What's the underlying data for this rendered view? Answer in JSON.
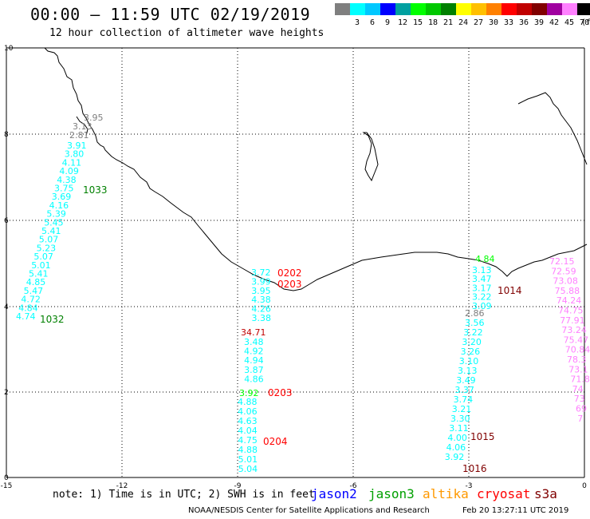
{
  "header": {
    "title": "00:00 – 11:59 UTC 02/19/2019",
    "subtitle": "12 hour collection of altimeter wave heights"
  },
  "legend": {
    "unit": "(ft)",
    "bins": [
      {
        "label": "",
        "color": "#7f7f7f"
      },
      {
        "label": "3",
        "color": "#00ffff"
      },
      {
        "label": "6",
        "color": "#00c8ff"
      },
      {
        "label": "9",
        "color": "#0000ff"
      },
      {
        "label": "12",
        "color": "#00a0a0"
      },
      {
        "label": "15",
        "color": "#00ff00"
      },
      {
        "label": "18",
        "color": "#00c800"
      },
      {
        "label": "21",
        "color": "#008000"
      },
      {
        "label": "24",
        "color": "#ffff00"
      },
      {
        "label": "27",
        "color": "#ffc000"
      },
      {
        "label": "30",
        "color": "#ff8000"
      },
      {
        "label": "33",
        "color": "#ff0000"
      },
      {
        "label": "36",
        "color": "#c00000"
      },
      {
        "label": "39",
        "color": "#800000"
      },
      {
        "label": "42",
        "color": "#a000a0"
      },
      {
        "label": "45",
        "color": "#ff80ff"
      },
      {
        "label": "70",
        "color": "#000000"
      }
    ]
  },
  "axes": {
    "x_ticks": [
      "-15",
      "-12",
      "-9",
      "-6",
      "-3",
      "0"
    ],
    "y_ticks": [
      "0",
      "2",
      "4",
      "6",
      "8",
      "10"
    ]
  },
  "tracks": [
    {
      "color": "#00ffff",
      "values": [
        "3.91",
        "3.80",
        "4.11",
        "4.09",
        "4.38",
        "3.75",
        "3.69",
        "4.16",
        "5.39",
        "5.45",
        "5.41",
        "5.07",
        "5.23",
        "5.07",
        "5.01",
        "5.41",
        "4.85",
        "5.47",
        "4.72",
        "4.84",
        "4.74"
      ]
    },
    {
      "color": "#00ffff",
      "values": [
        "3.72",
        "3.99",
        "3.95",
        "4.38",
        "4.26",
        "3.38"
      ]
    },
    {
      "color": "#00ffff",
      "values": [
        "3.48",
        "4.92",
        "4.94",
        "3.87",
        "4.86"
      ]
    },
    {
      "color": "#00ffff",
      "values": [
        "4.88",
        "4.06",
        "4.63",
        "4.04",
        "4.75",
        "4.88",
        "5.01",
        "5.04"
      ]
    },
    {
      "color": "#00ffff",
      "values": [
        "3.13",
        "3.47",
        "3.17",
        "3.22",
        "3.09"
      ]
    },
    {
      "color": "#00ffff",
      "values": [
        "3.56",
        "3.22",
        "3.20",
        "3.26",
        "3.10",
        "3.13",
        "3.49",
        "3.37",
        "3.74",
        "3.21",
        "3.30",
        "3.11",
        "4.00",
        "4.06",
        "3.92"
      ]
    },
    {
      "color": "#ff80ff",
      "values": [
        "72.15",
        "72.59",
        "73.08",
        "75.88",
        "74.24",
        "74.75",
        "77.91",
        "73.24",
        "75.47",
        "70.84",
        "78.3",
        "73.1",
        "71.8",
        "74",
        "73",
        "69",
        "7"
      ]
    }
  ],
  "single_values": [
    {
      "label": "3.95",
      "color": "#7f7f7f"
    },
    {
      "label": "3.13",
      "color": "#7f7f7f"
    },
    {
      "label": "2.81",
      "color": "#7f7f7f"
    },
    {
      "label": "34.71",
      "color": "#c00000"
    },
    {
      "label": "3.92",
      "color": "#00ff00"
    },
    {
      "label": "4.84",
      "color": "#00ff00"
    },
    {
      "label": "2.86",
      "color": "#7f7f7f"
    }
  ],
  "time_labels": [
    {
      "label": "1033",
      "color": "#008000"
    },
    {
      "label": "1032",
      "color": "#008000"
    },
    {
      "label": "0202",
      "color": "#ff0000"
    },
    {
      "label": "0203",
      "color": "#ff0000"
    },
    {
      "label": "0203",
      "color": "#ff0000"
    },
    {
      "label": "0204",
      "color": "#ff0000"
    },
    {
      "label": "1014",
      "color": "#800000"
    },
    {
      "label": "1015",
      "color": "#800000"
    },
    {
      "label": "1016",
      "color": "#800000"
    }
  ],
  "footer": {
    "note": "note: 1) Time is in UTC; 2) SWH is in feet",
    "satellites": [
      {
        "name": "jason2",
        "color": "#0000ff"
      },
      {
        "name": "jason3",
        "color": "#00a000"
      },
      {
        "name": "altika",
        "color": "#ff9900"
      },
      {
        "name": "cryosat",
        "color": "#ff0000"
      },
      {
        "name": "s3a",
        "color": "#800000"
      }
    ],
    "org": "NOAA/NESDIS Center for Satellite Applications and Research",
    "date": "Feb 20 13:27:11 UTC 2019"
  }
}
